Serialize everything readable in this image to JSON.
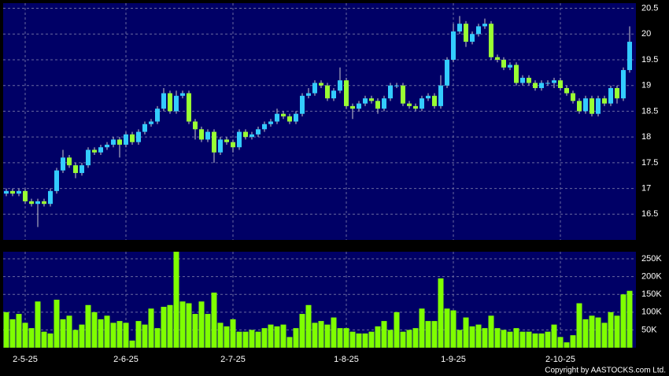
{
  "chart_data": [
    {
      "type": "candlestick",
      "up_color": "#33ccff",
      "down_color": "#99ff33",
      "background": "#000066",
      "grid": true,
      "ylim": [
        16.0,
        20.6
      ],
      "yticks": [
        16.5,
        17,
        17.5,
        18,
        18.5,
        19,
        19.5,
        20,
        20.5
      ],
      "open": [
        16.9,
        16.95,
        16.9,
        16.95,
        16.75,
        16.7,
        16.75,
        16.7,
        16.95,
        17.35,
        17.6,
        17.45,
        17.3,
        17.45,
        17.75,
        17.7,
        17.8,
        17.85,
        17.95,
        17.85,
        18.05,
        17.9,
        18.1,
        18.25,
        18.3,
        18.55,
        18.85,
        18.5,
        18.8,
        18.85,
        18.3,
        18.15,
        17.95,
        18.1,
        17.7,
        17.95,
        17.9,
        17.8,
        18.1,
        18.0,
        18.05,
        18.15,
        18.25,
        18.3,
        18.45,
        18.4,
        18.3,
        18.45,
        18.8,
        18.85,
        19.05,
        19.0,
        18.75,
        18.9,
        19.1,
        18.6,
        18.55,
        18.65,
        18.75,
        18.7,
        18.55,
        18.75,
        19.0,
        19.0,
        18.65,
        18.6,
        18.55,
        18.75,
        18.8,
        18.6,
        19.0,
        19.5,
        20.05,
        20.2,
        19.85,
        20.0,
        20.15,
        20.2,
        19.55,
        19.5,
        19.35,
        19.4,
        19.05,
        19.15,
        19.05,
        18.95,
        19.05,
        19.05,
        19.1,
        18.95,
        18.85,
        18.7,
        18.5,
        18.75,
        18.45,
        18.75,
        18.65,
        18.95,
        18.75,
        19.3
      ],
      "high": [
        17.0,
        17.0,
        17.0,
        17.0,
        16.8,
        16.8,
        16.8,
        17.0,
        17.4,
        17.75,
        17.65,
        17.5,
        17.5,
        17.8,
        17.8,
        17.85,
        17.9,
        18.0,
        18.0,
        18.1,
        18.1,
        18.15,
        18.3,
        18.35,
        18.6,
        18.95,
        18.9,
        18.9,
        18.9,
        18.9,
        18.35,
        18.2,
        18.15,
        18.15,
        18.0,
        18.0,
        17.95,
        18.15,
        18.15,
        18.1,
        18.2,
        18.3,
        18.35,
        18.55,
        18.5,
        18.45,
        18.5,
        18.85,
        18.95,
        19.1,
        19.1,
        19.05,
        18.95,
        19.35,
        19.15,
        18.65,
        18.7,
        18.8,
        18.8,
        18.75,
        18.8,
        19.05,
        19.05,
        19.05,
        18.7,
        18.65,
        18.8,
        18.85,
        18.85,
        19.2,
        19.55,
        20.2,
        20.35,
        20.25,
        20.05,
        20.2,
        20.3,
        20.25,
        19.6,
        19.55,
        19.45,
        19.45,
        19.2,
        19.2,
        19.1,
        19.1,
        19.1,
        19.15,
        19.15,
        19.0,
        18.9,
        18.75,
        18.8,
        18.8,
        18.8,
        18.8,
        19.0,
        19.0,
        19.35,
        20.15
      ],
      "low": [
        16.85,
        16.85,
        16.85,
        16.7,
        16.65,
        16.25,
        16.65,
        16.65,
        16.9,
        17.3,
        17.4,
        17.2,
        17.25,
        17.4,
        17.65,
        17.65,
        17.75,
        17.8,
        17.6,
        17.8,
        17.85,
        17.85,
        18.05,
        18.2,
        18.25,
        18.5,
        18.45,
        18.45,
        18.75,
        18.25,
        17.95,
        17.9,
        17.9,
        17.5,
        17.65,
        17.85,
        17.7,
        17.75,
        17.95,
        17.95,
        18.0,
        18.1,
        18.2,
        18.25,
        18.35,
        18.25,
        18.25,
        18.4,
        18.75,
        18.8,
        18.95,
        18.7,
        18.7,
        18.85,
        18.55,
        18.35,
        18.5,
        18.6,
        18.65,
        18.45,
        18.5,
        18.7,
        18.95,
        18.6,
        18.55,
        18.5,
        18.5,
        18.7,
        18.55,
        18.55,
        18.95,
        19.45,
        20.0,
        19.75,
        19.8,
        19.95,
        20.1,
        19.5,
        19.45,
        19.3,
        19.3,
        19.0,
        19.0,
        19.0,
        18.9,
        18.9,
        19.0,
        18.95,
        18.9,
        18.8,
        18.65,
        18.45,
        18.45,
        18.4,
        18.4,
        18.6,
        18.6,
        18.65,
        18.7,
        19.25
      ],
      "close": [
        16.95,
        16.9,
        16.95,
        16.75,
        16.7,
        16.75,
        16.7,
        16.95,
        17.35,
        17.6,
        17.45,
        17.3,
        17.45,
        17.75,
        17.7,
        17.8,
        17.85,
        17.95,
        17.85,
        18.05,
        17.9,
        18.1,
        18.25,
        18.3,
        18.55,
        18.85,
        18.5,
        18.8,
        18.85,
        18.3,
        18.15,
        17.95,
        18.1,
        17.7,
        17.95,
        17.9,
        17.8,
        18.1,
        18.0,
        18.05,
        18.15,
        18.25,
        18.3,
        18.45,
        18.4,
        18.3,
        18.45,
        18.8,
        18.85,
        19.05,
        19.0,
        18.75,
        18.9,
        19.1,
        18.6,
        18.55,
        18.65,
        18.75,
        18.7,
        18.55,
        18.75,
        19.0,
        19.0,
        18.65,
        18.6,
        18.55,
        18.75,
        18.8,
        18.6,
        19.0,
        19.5,
        20.05,
        20.2,
        19.85,
        20.0,
        20.15,
        20.2,
        19.55,
        19.5,
        19.35,
        19.4,
        19.05,
        19.15,
        19.05,
        18.95,
        19.05,
        19.05,
        19.1,
        18.95,
        18.85,
        18.7,
        18.5,
        18.75,
        18.45,
        18.75,
        18.65,
        18.95,
        18.75,
        19.3,
        19.85
      ]
    },
    {
      "type": "bar",
      "color": "#7fff00",
      "background": "#000066",
      "grid": true,
      "ylim": [
        0,
        270000
      ],
      "yticks": [
        {
          "value": 50000,
          "label": "50K"
        },
        {
          "value": 100000,
          "label": "100K"
        },
        {
          "value": 150000,
          "label": "150K"
        },
        {
          "value": 200000,
          "label": "200K"
        },
        {
          "value": 250000,
          "label": "250K"
        }
      ],
      "categories": [
        null,
        null,
        null,
        "2-5-25",
        null,
        null,
        null,
        null,
        null,
        null,
        null,
        null,
        null,
        null,
        null,
        null,
        null,
        null,
        null,
        "2-6-25",
        null,
        null,
        null,
        null,
        null,
        null,
        null,
        null,
        null,
        null,
        null,
        null,
        null,
        null,
        null,
        null,
        "2-7-25",
        null,
        null,
        null,
        null,
        null,
        null,
        null,
        null,
        null,
        null,
        null,
        null,
        null,
        null,
        null,
        null,
        null,
        "1-8-25",
        null,
        null,
        null,
        null,
        null,
        null,
        null,
        null,
        null,
        null,
        null,
        null,
        null,
        null,
        null,
        null,
        "1-9-25",
        null,
        null,
        null,
        null,
        null,
        null,
        null,
        null,
        null,
        null,
        null,
        null,
        null,
        null,
        null,
        null,
        "2-10-25",
        null,
        null,
        null,
        null,
        null,
        null,
        null,
        null,
        null,
        null,
        null
      ],
      "values": [
        100000,
        80000,
        95000,
        70000,
        55000,
        130000,
        45000,
        40000,
        135000,
        80000,
        90000,
        50000,
        65000,
        120000,
        100000,
        80000,
        90000,
        70000,
        75000,
        70000,
        20000,
        75000,
        65000,
        110000,
        55000,
        115000,
        120000,
        270000,
        130000,
        125000,
        95000,
        130000,
        95000,
        155000,
        70000,
        60000,
        80000,
        45000,
        45000,
        50000,
        45000,
        55000,
        65000,
        60000,
        65000,
        30000,
        55000,
        95000,
        120000,
        70000,
        75000,
        65000,
        85000,
        55000,
        55000,
        45000,
        40000,
        40000,
        45000,
        60000,
        75000,
        50000,
        100000,
        45000,
        50000,
        55000,
        110000,
        75000,
        75000,
        195000,
        110000,
        105000,
        50000,
        85000,
        60000,
        65000,
        55000,
        90000,
        55000,
        50000,
        45000,
        55000,
        45000,
        45000,
        40000,
        40000,
        45000,
        65000,
        30000,
        15000,
        35000,
        125000,
        80000,
        90000,
        85000,
        70000,
        100000,
        90000,
        150000,
        160000
      ]
    }
  ],
  "footer": "Copyright by AASTOCKS.com Ltd."
}
